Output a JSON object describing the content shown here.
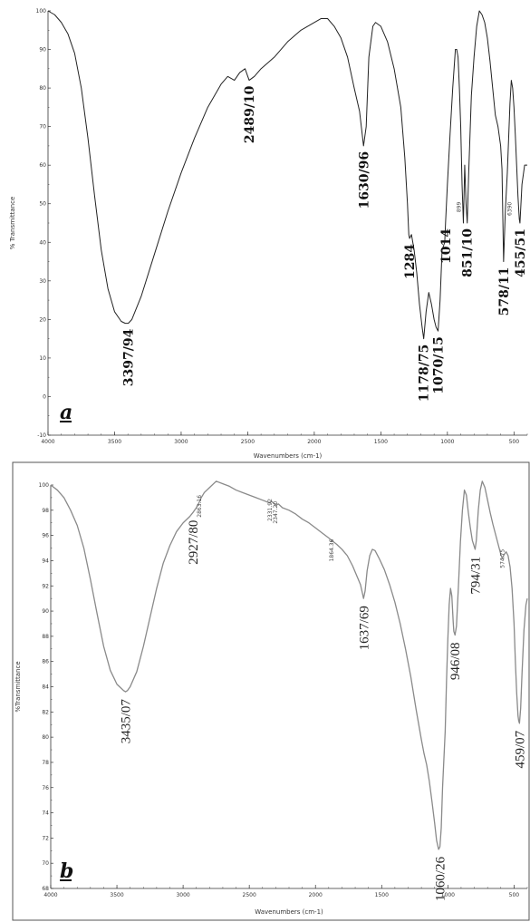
{
  "chart_data": [
    {
      "type": "line",
      "panel": "a",
      "xlabel": "Wavenumbers (cm-1)",
      "ylabel": "% Transmittance",
      "xlim": [
        4000,
        400
      ],
      "ylim": [
        -10,
        100
      ],
      "x_ticks": [
        4000,
        3500,
        3000,
        2500,
        2000,
        1500,
        1000,
        500
      ],
      "y_ticks": [
        -10,
        0,
        10,
        20,
        30,
        40,
        50,
        60,
        70,
        80,
        90,
        100
      ],
      "series": [
        {
          "color": "#222222",
          "x": [
            4000,
            3950,
            3900,
            3850,
            3800,
            3750,
            3700,
            3650,
            3600,
            3550,
            3500,
            3450,
            3420,
            3397,
            3370,
            3300,
            3200,
            3100,
            3000,
            2900,
            2800,
            2700,
            2650,
            2600,
            2560,
            2520,
            2489,
            2450,
            2400,
            2300,
            2200,
            2100,
            2000,
            1950,
            1900,
            1850,
            1800,
            1750,
            1700,
            1660,
            1630,
            1610,
            1590,
            1560,
            1540,
            1500,
            1450,
            1400,
            1350,
            1320,
            1300,
            1290,
            1284,
            1270,
            1250,
            1230,
            1210,
            1190,
            1178,
            1160,
            1140,
            1120,
            1100,
            1085,
            1070,
            1055,
            1040,
            1020,
            1014,
            1000,
            980,
            960,
            940,
            930,
            920,
            910,
            900,
            890,
            880,
            870,
            860,
            851,
            840,
            820,
            800,
            780,
            760,
            740,
            720,
            700,
            680,
            660,
            640,
            620,
            600,
            590,
            578,
            565,
            550,
            540,
            530,
            520,
            510,
            500,
            490,
            480,
            470,
            460,
            455,
            440,
            420,
            400
          ],
          "y": [
            100,
            99,
            97,
            94,
            89,
            80,
            67,
            52,
            38,
            28,
            22,
            19.5,
            19,
            19,
            20,
            26,
            37,
            48,
            58,
            67,
            75,
            81,
            83,
            82,
            84,
            85,
            82,
            83,
            85,
            88,
            92,
            95,
            97,
            98,
            98,
            96,
            93,
            88,
            80,
            74,
            65,
            70,
            88,
            96,
            97,
            96,
            92,
            85,
            75,
            62,
            50,
            42,
            41,
            42,
            38,
            32,
            24,
            18,
            15,
            22,
            27,
            24,
            20,
            18,
            17,
            25,
            38,
            40,
            45,
            55,
            68,
            80,
            90,
            90,
            88,
            80,
            70,
            55,
            45,
            60,
            50,
            45,
            58,
            78,
            88,
            96,
            100,
            99,
            97,
            93,
            87,
            80,
            73,
            70,
            65,
            59,
            35,
            48,
            58,
            67,
            76,
            82,
            80,
            75,
            68,
            60,
            52,
            46,
            45,
            55,
            60,
            60
          ]
        }
      ],
      "annotations": [
        {
          "text": "3397/94",
          "x": 3397,
          "y": 19
        },
        {
          "text": "2489/10",
          "x": 2489,
          "y": 82
        },
        {
          "text": "1630/96",
          "x": 1630,
          "y": 65
        },
        {
          "text": "1284",
          "x": 1284,
          "y": 41
        },
        {
          "text": "1178/75",
          "x": 1178,
          "y": 15
        },
        {
          "text": "1070/15",
          "x": 1070,
          "y": 17
        },
        {
          "text": "1014",
          "x": 1014,
          "y": 45
        },
        {
          "text": "851/10",
          "x": 851,
          "y": 45
        },
        {
          "text": "578/11",
          "x": 578,
          "y": 35
        },
        {
          "text": "455/51",
          "x": 455,
          "y": 45
        }
      ],
      "small_labels": [
        {
          "text": "899",
          "x": 899,
          "y": 50
        },
        {
          "text": "6390",
          "x": 520,
          "y": 50
        }
      ]
    },
    {
      "type": "line",
      "panel": "b",
      "xlabel": "Wavenumbers (cm-1)",
      "ylabel": "%Transmittance",
      "xlim": [
        4000,
        400
      ],
      "ylim": [
        68,
        100
      ],
      "x_ticks": [
        4000,
        3500,
        3000,
        2500,
        2000,
        1500,
        1000,
        500
      ],
      "y_ticks": [
        68,
        70,
        72,
        74,
        76,
        78,
        80,
        82,
        84,
        86,
        88,
        90,
        92,
        94,
        96,
        98,
        100
      ],
      "series": [
        {
          "color": "#888888",
          "x": [
            4000,
            3950,
            3900,
            3850,
            3800,
            3750,
            3700,
            3650,
            3600,
            3550,
            3500,
            3470,
            3450,
            3435,
            3420,
            3400,
            3350,
            3300,
            3250,
            3200,
            3150,
            3100,
            3050,
            3000,
            2950,
            2927,
            2900,
            2880,
            2863,
            2840,
            2800,
            2750,
            2700,
            2650,
            2600,
            2550,
            2500,
            2450,
            2400,
            2350,
            2331,
            2300,
            2280,
            2250,
            2200,
            2150,
            2100,
            2050,
            2000,
            1950,
            1900,
            1864,
            1840,
            1800,
            1760,
            1720,
            1680,
            1660,
            1645,
            1637,
            1625,
            1610,
            1590,
            1570,
            1550,
            1520,
            1480,
            1440,
            1400,
            1360,
            1320,
            1280,
            1240,
            1200,
            1180,
            1160,
            1140,
            1120,
            1100,
            1085,
            1070,
            1060,
            1050,
            1040,
            1020,
            1010,
            1000,
            990,
            980,
            970,
            960,
            955,
            946,
            935,
            920,
            905,
            890,
            875,
            860,
            845,
            830,
            815,
            800,
            794,
            785,
            770,
            755,
            740,
            720,
            700,
            680,
            660,
            640,
            620,
            600,
            590,
            574,
            560,
            545,
            530,
            515,
            500,
            490,
            480,
            470,
            465,
            459,
            450,
            440,
            425,
            410,
            400
          ],
          "y": [
            100,
            99.6,
            99,
            98,
            96.8,
            95,
            92.5,
            89.8,
            87.2,
            85.3,
            84.2,
            83.9,
            83.7,
            83.6,
            83.7,
            84,
            85.2,
            87.2,
            89.5,
            91.8,
            93.8,
            95.2,
            96.3,
            97,
            97.5,
            97.8,
            98.2,
            98.6,
            99,
            99.4,
            99.8,
            100.3,
            100.1,
            99.9,
            99.6,
            99.4,
            99.2,
            99,
            98.8,
            98.6,
            98.7,
            98.4,
            98.5,
            98.2,
            98,
            97.7,
            97.3,
            97,
            96.6,
            96.2,
            95.8,
            95.5,
            95.3,
            94.9,
            94.4,
            93.6,
            92.6,
            92.1,
            91.4,
            91,
            91.6,
            93.2,
            94.4,
            94.9,
            94.8,
            94.2,
            93.3,
            92.1,
            90.7,
            89,
            87,
            84.8,
            82.2,
            79.8,
            78.7,
            77.8,
            76.5,
            74.9,
            73.2,
            71.8,
            71.1,
            71.3,
            72.8,
            76,
            80.5,
            84.5,
            87.8,
            90.5,
            91.8,
            91.2,
            89.2,
            88.4,
            88.1,
            88.8,
            92,
            95.5,
            98,
            99.6,
            99.2,
            97.8,
            96.6,
            95.6,
            95.1,
            94.9,
            95.6,
            98,
            99.6,
            100.3,
            99.8,
            98.8,
            97.8,
            96.9,
            96.1,
            95.3,
            94.5,
            94.2,
            94.5,
            94.7,
            94.4,
            93.5,
            91.8,
            89,
            86,
            83.5,
            81.7,
            81.3,
            81.1,
            82.3,
            85,
            88.5,
            90.5,
            91
          ]
        }
      ],
      "annotations": [
        {
          "text": "3435/07",
          "x": 3435,
          "y": 83.6
        },
        {
          "text": "2927/80",
          "x": 2927,
          "y": 97.8
        },
        {
          "text": "1637/69",
          "x": 1637,
          "y": 91
        },
        {
          "text": "1060/26",
          "x": 1060,
          "y": 71.1
        },
        {
          "text": "946/08",
          "x": 946,
          "y": 88.1
        },
        {
          "text": "794/31",
          "x": 794,
          "y": 94.9
        },
        {
          "text": "459/07",
          "x": 459,
          "y": 81.1
        }
      ],
      "small_labels": [
        {
          "text": "2863.16",
          "x": 2863,
          "y": 99
        },
        {
          "text": "2331.92",
          "x": 2331,
          "y": 98.7
        },
        {
          "text": "2347.20",
          "x": 2290,
          "y": 98.5
        },
        {
          "text": "1864.36",
          "x": 1864,
          "y": 95.5
        },
        {
          "text": "574.75",
          "x": 574,
          "y": 94.7
        }
      ]
    }
  ]
}
